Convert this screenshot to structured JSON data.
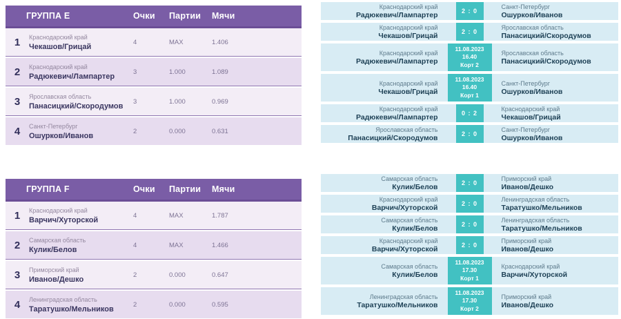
{
  "colors": {
    "header_purple": "#7A5DA6",
    "header_border": "#6B4E96",
    "row_light": "#F3EDF6",
    "row_dark": "#E7DCEF",
    "row_separator": "#8F76B1",
    "match_bg": "#D8ECF4",
    "badge_teal": "#42C1C2"
  },
  "groups": [
    {
      "standings": {
        "title": "ГРУППА E",
        "columns": [
          "Очки",
          "Партии",
          "Мячи"
        ],
        "rows": [
          {
            "rank": "1",
            "region": "Краснодарский край",
            "team": "Чекашов/Грицай",
            "points": "4",
            "sets": "MAX",
            "balls": "1.406"
          },
          {
            "rank": "2",
            "region": "Краснодарский край",
            "team": "Радюкевич/Лампартер",
            "points": "3",
            "sets": "1.000",
            "balls": "1.089"
          },
          {
            "rank": "3",
            "region": "Ярославская область",
            "team": "Панасицкий/Скородумов",
            "points": "3",
            "sets": "1.000",
            "balls": "0.969"
          },
          {
            "rank": "4",
            "region": "Санкт-Петербург",
            "team": "Ошурков/Иванов",
            "points": "2",
            "sets": "0.000",
            "balls": "0.631"
          }
        ]
      },
      "matches": [
        {
          "type": "score",
          "left_region": "Краснодарский край",
          "left_team": "Радюкевич/Лампартер",
          "score": "2 : 0",
          "right_region": "Санкт-Петербург",
          "right_team": "Ошурков/Иванов"
        },
        {
          "type": "score",
          "left_region": "Краснодарский край",
          "left_team": "Чекашов/Грицай",
          "score": "2 : 0",
          "right_region": "Ярославская область",
          "right_team": "Панасицкий/Скородумов"
        },
        {
          "type": "schedule",
          "left_region": "Краснодарский край",
          "left_team": "Радюкевич/Лампартер",
          "date": "11.08.2023",
          "time": "16.40",
          "court": "Корт 2",
          "right_region": "Ярославская область",
          "right_team": "Панасицкий/Скородумов"
        },
        {
          "type": "schedule",
          "left_region": "Краснодарский край",
          "left_team": "Чекашов/Грицай",
          "date": "11.08.2023",
          "time": "16.40",
          "court": "Корт 1",
          "right_region": "Санкт-Петербург",
          "right_team": "Ошурков/Иванов"
        },
        {
          "type": "score",
          "left_region": "Краснодарский край",
          "left_team": "Радюкевич/Лампартер",
          "score": "0 : 2",
          "right_region": "Краснодарский край",
          "right_team": "Чекашов/Грицай"
        },
        {
          "type": "score",
          "left_region": "Ярославская область",
          "left_team": "Панасицкий/Скородумов",
          "score": "2 : 0",
          "right_region": "Санкт-Петербург",
          "right_team": "Ошурков/Иванов"
        }
      ]
    },
    {
      "standings": {
        "title": "ГРУППА F",
        "columns": [
          "Очки",
          "Партии",
          "Мячи"
        ],
        "rows": [
          {
            "rank": "1",
            "region": "Краснодарский край",
            "team": "Варчич/Хуторской",
            "points": "4",
            "sets": "MAX",
            "balls": "1.787"
          },
          {
            "rank": "2",
            "region": "Самарская область",
            "team": "Кулик/Белов",
            "points": "4",
            "sets": "MAX",
            "balls": "1.466"
          },
          {
            "rank": "3",
            "region": "Приморский край",
            "team": "Иванов/Дешко",
            "points": "2",
            "sets": "0.000",
            "balls": "0.647"
          },
          {
            "rank": "4",
            "region": "Ленинградская область",
            "team": "Таратушко/Мельников",
            "points": "2",
            "sets": "0.000",
            "balls": "0.595"
          }
        ]
      },
      "matches": [
        {
          "type": "score",
          "left_region": "Самарская область",
          "left_team": "Кулик/Белов",
          "score": "2 : 0",
          "right_region": "Приморский край",
          "right_team": "Иванов/Дешко"
        },
        {
          "type": "score",
          "left_region": "Краснодарский край",
          "left_team": "Варчич/Хуторской",
          "score": "2 : 0",
          "right_region": "Ленинградская область",
          "right_team": "Таратушко/Мельников"
        },
        {
          "type": "score",
          "left_region": "Самарская область",
          "left_team": "Кулик/Белов",
          "score": "2 : 0",
          "right_region": "Ленинградская область",
          "right_team": "Таратушко/Мельников"
        },
        {
          "type": "score",
          "left_region": "Краснодарский край",
          "left_team": "Варчич/Хуторской",
          "score": "2 : 0",
          "right_region": "Приморский край",
          "right_team": "Иванов/Дешко"
        },
        {
          "type": "schedule",
          "left_region": "Самарская область",
          "left_team": "Кулик/Белов",
          "date": "11.08.2023",
          "time": "17.30",
          "court": "Корт 1",
          "right_region": "Краснодарский край",
          "right_team": "Варчич/Хуторской"
        },
        {
          "type": "schedule",
          "left_region": "Ленинградская область",
          "left_team": "Таратушко/Мельников",
          "date": "11.08.2023",
          "time": "17.30",
          "court": "Корт 2",
          "right_region": "Приморский край",
          "right_team": "Иванов/Дешко"
        }
      ]
    }
  ]
}
